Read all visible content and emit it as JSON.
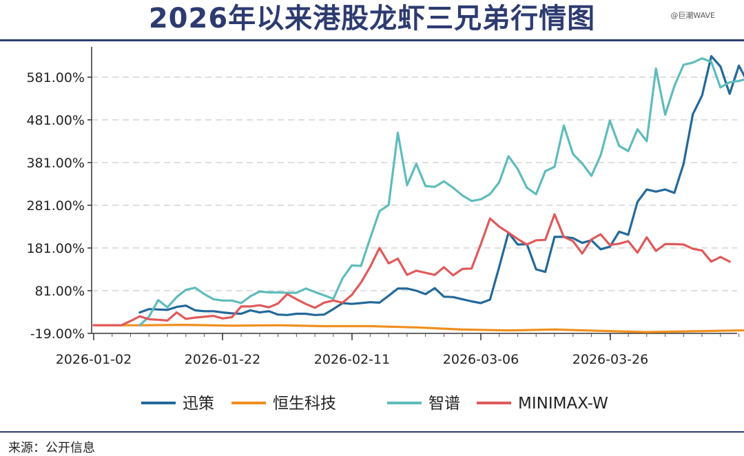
{
  "header": {
    "title": "2026年以来港股龙虾三兄弟行情图",
    "watermark": "@巨潮WAVE"
  },
  "footer": {
    "source": "来源：公开信息"
  },
  "chart_data": {
    "type": "line",
    "title": "2026年以来港股龙虾三兄弟行情图",
    "xlabel": "",
    "ylabel": "",
    "x_ticks": [
      "2026-01-02",
      "2026-01-22",
      "2026-02-11",
      "2026-03-06",
      "2026-03-26"
    ],
    "y_ticks": [
      "-19.00%",
      "81.00%",
      "181.00%",
      "281.00%",
      "381.00%",
      "481.00%",
      "581.00%"
    ],
    "ylim": [
      -19,
      630
    ],
    "grid": "horizontal dashed",
    "legend_position": "bottom",
    "series": [
      {
        "name": "迅策",
        "color": "#22689a",
        "points": [
          [
            5,
            30
          ],
          [
            6,
            38
          ],
          [
            7,
            37
          ],
          [
            8,
            36
          ],
          [
            9,
            43
          ],
          [
            10,
            46
          ],
          [
            11,
            35
          ],
          [
            12,
            33
          ],
          [
            13,
            33
          ],
          [
            14,
            30
          ],
          [
            15,
            28
          ],
          [
            16,
            27
          ],
          [
            17,
            35
          ],
          [
            18,
            30
          ],
          [
            19,
            33
          ],
          [
            20,
            25
          ],
          [
            21,
            24
          ],
          [
            22,
            27
          ],
          [
            23,
            27
          ],
          [
            24,
            24
          ],
          [
            25,
            25
          ],
          [
            26,
            38
          ],
          [
            27,
            52
          ],
          [
            28,
            50
          ],
          [
            29,
            52
          ],
          [
            30,
            54
          ],
          [
            31,
            53
          ],
          [
            32,
            69
          ],
          [
            33,
            86
          ],
          [
            34,
            86
          ],
          [
            35,
            81
          ],
          [
            36,
            73
          ],
          [
            37,
            87
          ],
          [
            38,
            67
          ],
          [
            39,
            66
          ],
          [
            40,
            61
          ],
          [
            41,
            56
          ],
          [
            42,
            52
          ],
          [
            43,
            60
          ],
          [
            44,
            137
          ],
          [
            45,
            217
          ],
          [
            46,
            189
          ],
          [
            47,
            190
          ],
          [
            48,
            131
          ],
          [
            49,
            125
          ],
          [
            50,
            207
          ],
          [
            51,
            207
          ],
          [
            52,
            204
          ],
          [
            53,
            193
          ],
          [
            54,
            199
          ],
          [
            55,
            178
          ],
          [
            56,
            184
          ],
          [
            57,
            219
          ],
          [
            58,
            212
          ],
          [
            59,
            289
          ],
          [
            60,
            318
          ],
          [
            61,
            313
          ],
          [
            62,
            318
          ],
          [
            63,
            310
          ],
          [
            64,
            378
          ],
          [
            65,
            494
          ],
          [
            66,
            538
          ],
          [
            67,
            630
          ],
          [
            68,
            606
          ],
          [
            69,
            542
          ],
          [
            70,
            608
          ],
          [
            71,
            567
          ]
        ]
      },
      {
        "name": "恒生科技",
        "color": "#ef8f1f",
        "points": [
          [
            0,
            0
          ],
          [
            5,
            0
          ],
          [
            10,
            1
          ],
          [
            15,
            -1
          ],
          [
            20,
            0
          ],
          [
            25,
            -2
          ],
          [
            30,
            -2
          ],
          [
            35,
            -5
          ],
          [
            40,
            -10
          ],
          [
            45,
            -12
          ],
          [
            50,
            -10
          ],
          [
            55,
            -13
          ],
          [
            60,
            -16
          ],
          [
            65,
            -14
          ],
          [
            70,
            -12
          ],
          [
            71,
            -12
          ]
        ]
      },
      {
        "name": "智谱",
        "color": "#5ebcbb",
        "points": [
          [
            5,
            0
          ],
          [
            6,
            20
          ],
          [
            7,
            59
          ],
          [
            8,
            42
          ],
          [
            9,
            66
          ],
          [
            10,
            83
          ],
          [
            11,
            88
          ],
          [
            12,
            73
          ],
          [
            13,
            61
          ],
          [
            14,
            58
          ],
          [
            15,
            58
          ],
          [
            16,
            52
          ],
          [
            17,
            68
          ],
          [
            18,
            79
          ],
          [
            19,
            77
          ],
          [
            20,
            77
          ],
          [
            21,
            76
          ],
          [
            22,
            76
          ],
          [
            23,
            86
          ],
          [
            24,
            78
          ],
          [
            25,
            70
          ],
          [
            26,
            62
          ],
          [
            27,
            110
          ],
          [
            28,
            140
          ],
          [
            29,
            139
          ],
          [
            30,
            204
          ],
          [
            31,
            267
          ],
          [
            32,
            282
          ],
          [
            33,
            451
          ],
          [
            34,
            328
          ],
          [
            35,
            378
          ],
          [
            36,
            326
          ],
          [
            37,
            324
          ],
          [
            38,
            337
          ],
          [
            39,
            322
          ],
          [
            40,
            304
          ],
          [
            41,
            291
          ],
          [
            42,
            295
          ],
          [
            43,
            307
          ],
          [
            44,
            335
          ],
          [
            45,
            396
          ],
          [
            46,
            366
          ],
          [
            47,
            322
          ],
          [
            48,
            307
          ],
          [
            49,
            361
          ],
          [
            50,
            371
          ],
          [
            51,
            468
          ],
          [
            52,
            401
          ],
          [
            53,
            379
          ],
          [
            54,
            350
          ],
          [
            55,
            398
          ],
          [
            56,
            479
          ],
          [
            57,
            420
          ],
          [
            58,
            408
          ],
          [
            59,
            459
          ],
          [
            60,
            431
          ],
          [
            61,
            601
          ],
          [
            62,
            493
          ],
          [
            63,
            560
          ],
          [
            64,
            610
          ],
          [
            65,
            615
          ],
          [
            66,
            625
          ],
          [
            67,
            617
          ],
          [
            68,
            557
          ],
          [
            69,
            569
          ],
          [
            70,
            572
          ],
          [
            71,
            578
          ]
        ]
      },
      {
        "name": "MINIMAX-W",
        "color": "#e0595a",
        "points": [
          [
            0,
            0
          ],
          [
            3,
            0
          ],
          [
            4,
            10
          ],
          [
            5,
            21
          ],
          [
            6,
            14
          ],
          [
            7,
            13
          ],
          [
            8,
            11
          ],
          [
            9,
            30
          ],
          [
            10,
            15
          ],
          [
            11,
            18
          ],
          [
            12,
            20
          ],
          [
            13,
            22
          ],
          [
            14,
            16
          ],
          [
            15,
            19
          ],
          [
            16,
            44
          ],
          [
            17,
            44
          ],
          [
            18,
            47
          ],
          [
            19,
            42
          ],
          [
            20,
            51
          ],
          [
            21,
            73
          ],
          [
            22,
            61
          ],
          [
            23,
            50
          ],
          [
            24,
            41
          ],
          [
            25,
            53
          ],
          [
            26,
            58
          ],
          [
            27,
            53
          ],
          [
            28,
            71
          ],
          [
            29,
            100
          ],
          [
            30,
            137
          ],
          [
            31,
            181
          ],
          [
            32,
            145
          ],
          [
            33,
            156
          ],
          [
            34,
            118
          ],
          [
            35,
            128
          ],
          [
            36,
            123
          ],
          [
            37,
            118
          ],
          [
            38,
            136
          ],
          [
            39,
            117
          ],
          [
            40,
            132
          ],
          [
            41,
            133
          ],
          [
            42,
            190
          ],
          [
            43,
            250
          ],
          [
            44,
            231
          ],
          [
            45,
            217
          ],
          [
            46,
            202
          ],
          [
            47,
            189
          ],
          [
            48,
            199
          ],
          [
            49,
            200
          ],
          [
            50,
            260
          ],
          [
            51,
            207
          ],
          [
            52,
            197
          ],
          [
            53,
            168
          ],
          [
            54,
            201
          ],
          [
            55,
            213
          ],
          [
            56,
            188
          ],
          [
            57,
            191
          ],
          [
            58,
            197
          ],
          [
            59,
            170
          ],
          [
            60,
            206
          ],
          [
            61,
            174
          ],
          [
            62,
            190
          ],
          [
            63,
            190
          ],
          [
            64,
            189
          ],
          [
            65,
            179
          ],
          [
            66,
            175
          ],
          [
            67,
            149
          ],
          [
            68,
            160
          ],
          [
            69,
            149
          ]
        ]
      }
    ]
  }
}
